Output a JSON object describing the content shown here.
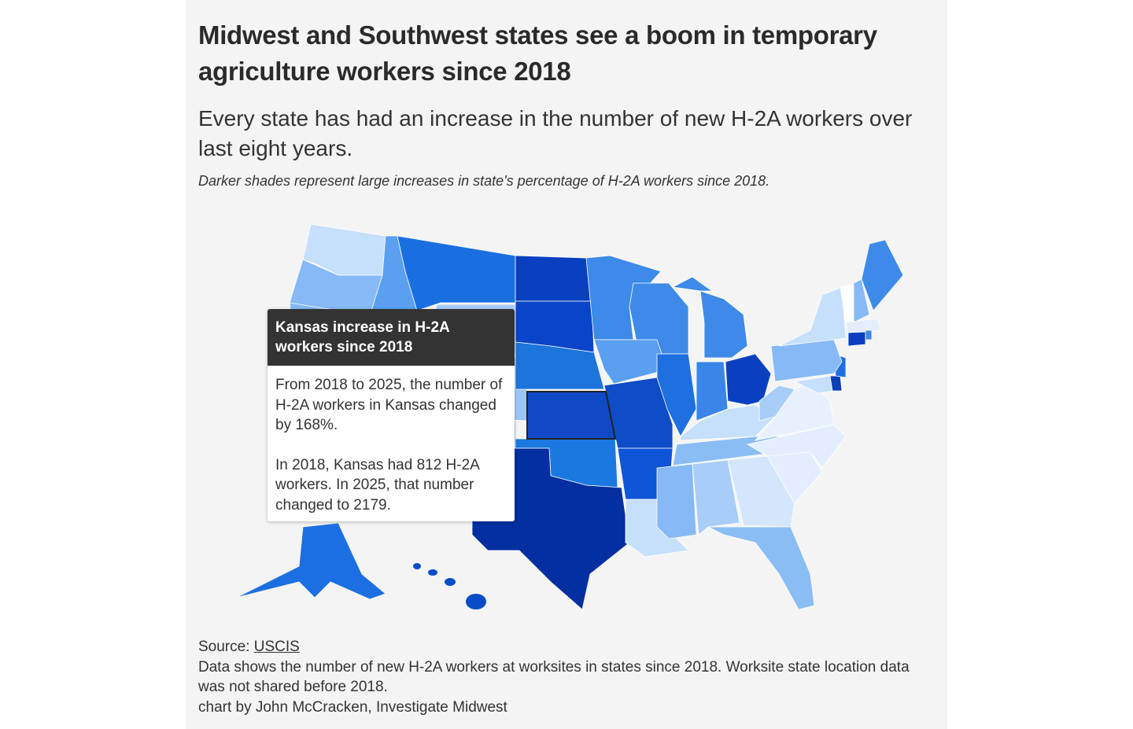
{
  "header": {
    "title": "Midwest and Southwest states see a boom in temporary agriculture workers since 2018",
    "subtitle": "Every state has had an increase in the number of new H-2A workers over last eight years.",
    "note": "Darker shades represent large increases in state's percentage of H-2A workers since 2018."
  },
  "tooltip": {
    "title": "Kansas increase in H-2A workers since 2018",
    "paragraph1": "From 2018 to 2025, the number of H-2A workers in Kansas changed by 168%.",
    "paragraph2": "In 2018, Kansas had 812 H-2A workers. In 2025, that number changed to 2179."
  },
  "chart_data": {
    "type": "choropleth",
    "metric": "percent increase in new H-2A workers since 2018",
    "highlighted": {
      "state": "Kansas",
      "workers_2018": 812,
      "workers_2025": 2179,
      "change_pct": 168
    },
    "state_fills": {
      "WA": "#c6dffb",
      "OR": "#86b9f5",
      "CA": "#86b9f5",
      "NV": "#a8cdf7",
      "ID": "#5a9ff0",
      "MT": "#1a6fe0",
      "WY": "#a8cdf7",
      "UT": "#6aa7f2",
      "AZ": "#5a9ff0",
      "CO": "#9cc5f6",
      "NM": "#6aa7f2",
      "ND": "#0a40c0",
      "SD": "#0a44c8",
      "NE": "#1c74dc",
      "KS": "#0f49c6",
      "OK": "#1b78e0",
      "TX": "#032fa0",
      "MN": "#3d8ae8",
      "IA": "#5a9ff0",
      "MO": "#0f4cc8",
      "AR": "#0e55d8",
      "LA": "#c6dffb",
      "WI": "#3d8ae8",
      "IL": "#1e6fe0",
      "MI": "#3d8ae8",
      "IN": "#3a86e8",
      "OH": "#0a40c0",
      "KY": "#c6dffb",
      "TN": "#8bbdf5",
      "MS": "#86b9f5",
      "AL": "#a8cdf7",
      "GA": "#d3e6fb",
      "FL": "#8bbdf5",
      "SC": "#e3edfd",
      "NC": "#e3edfd",
      "VA": "#e8f0fd",
      "WV": "#a8cdf7",
      "MD": "#c6dffb",
      "DE": "#0a3fb8",
      "NJ": "#1e6fe0",
      "PA": "#86b9f5",
      "NY": "#c6dffb",
      "VT": "#ffffff",
      "NH": "#86b9f5",
      "ME": "#3d8ae8",
      "MA": "#e3edfd",
      "CT": "#0a40c0",
      "RI": "#3d8ae8",
      "AK": "#1c6fe0",
      "HI": "#0a4cc8"
    }
  },
  "footer": {
    "source_label": "Source: ",
    "source_link": "USCIS",
    "description": "Data shows the number of new H-2A workers at worksites in states since 2018. Worksite state location data was not shared before 2018.",
    "credit": "chart by John McCracken, Investigate Midwest"
  }
}
